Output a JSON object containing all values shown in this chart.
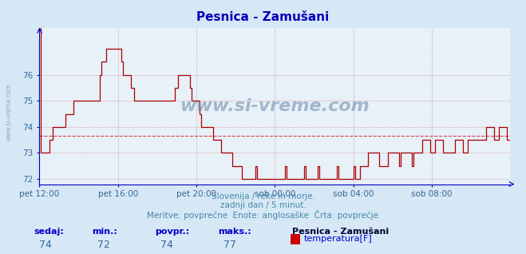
{
  "title": "Pesnica - Zamušani",
  "bg_color": "#d6e8f5",
  "plot_bg_color": "#e8f0f8",
  "line_color": "#aa0000",
  "avg_line_color": "#cc4444",
  "avg_line_style": "--",
  "axis_color": "#0000bb",
  "grid_color_h": "#cc8888",
  "grid_color_v": "#cc8888",
  "text_color": "#4488aa",
  "tick_color": "#336699",
  "watermark": "www.si-vreme.com",
  "watermark_color": "#6688aa",
  "sub_text1": "Slovenija / reke in morje.",
  "sub_text2": "zadnji dan / 5 minut.",
  "sub_text3": "Meritve: povprečne  Enote: anglosaške  Črta: povprečje",
  "legend_station": "Pesnica - Zamušani",
  "legend_label": "temperatura[F]",
  "legend_color": "#cc0000",
  "stat_labels": [
    "sedaj:",
    "min.:",
    "povpr.:",
    "maks.:"
  ],
  "stat_values": [
    "74",
    "72",
    "74",
    "77"
  ],
  "stat_label_color": "#0000cc",
  "stat_value_color": "#336699",
  "ylim": [
    71.8,
    77.8
  ],
  "yticks": [
    72,
    73,
    74,
    75,
    76
  ],
  "avg_value": 73.65,
  "xtick_labels": [
    "pet 12:00",
    "pet 16:00",
    "pet 20:00",
    "sob 00:00",
    "sob 04:00",
    "sob 08:00"
  ],
  "xtick_positions": [
    0,
    48,
    96,
    144,
    192,
    240
  ],
  "total_points": 289,
  "title_fontsize": 11,
  "tick_fontsize": 7.5,
  "sub_fontsize": 7.5,
  "stat_fontsize": 8,
  "keypoints": [
    [
      0,
      78
    ],
    [
      1,
      73
    ],
    [
      4,
      73
    ],
    [
      6,
      73.5
    ],
    [
      10,
      74
    ],
    [
      14,
      74
    ],
    [
      16,
      74.5
    ],
    [
      20,
      74.5
    ],
    [
      22,
      75
    ],
    [
      28,
      75
    ],
    [
      30,
      75
    ],
    [
      34,
      75
    ],
    [
      36,
      75
    ],
    [
      38,
      76.5
    ],
    [
      40,
      76.5
    ],
    [
      41,
      77
    ],
    [
      44,
      77
    ],
    [
      46,
      77
    ],
    [
      48,
      77
    ],
    [
      50,
      76.5
    ],
    [
      52,
      76
    ],
    [
      55,
      76
    ],
    [
      58,
      75
    ],
    [
      60,
      75
    ],
    [
      62,
      75
    ],
    [
      64,
      75
    ],
    [
      68,
      75
    ],
    [
      70,
      75
    ],
    [
      72,
      75
    ],
    [
      74,
      75
    ],
    [
      76,
      75
    ],
    [
      80,
      75
    ],
    [
      84,
      75.5
    ],
    [
      86,
      76
    ],
    [
      88,
      76
    ],
    [
      90,
      76
    ],
    [
      92,
      75.5
    ],
    [
      94,
      75
    ],
    [
      96,
      75
    ],
    [
      98,
      74.5
    ],
    [
      100,
      74
    ],
    [
      104,
      74
    ],
    [
      106,
      73.5
    ],
    [
      110,
      73.5
    ],
    [
      112,
      73
    ],
    [
      116,
      73
    ],
    [
      118,
      72.5
    ],
    [
      122,
      72.5
    ],
    [
      126,
      72
    ],
    [
      130,
      72
    ],
    [
      132,
      72.5
    ],
    [
      134,
      72
    ],
    [
      144,
      72
    ],
    [
      148,
      72
    ],
    [
      150,
      72.5
    ],
    [
      152,
      72
    ],
    [
      160,
      72
    ],
    [
      162,
      72.5
    ],
    [
      164,
      72
    ],
    [
      168,
      72
    ],
    [
      170,
      72.5
    ],
    [
      172,
      72
    ],
    [
      180,
      72
    ],
    [
      182,
      72.5
    ],
    [
      184,
      72
    ],
    [
      190,
      72
    ],
    [
      192,
      72.5
    ],
    [
      194,
      72
    ],
    [
      196,
      72.5
    ],
    [
      200,
      72.5
    ],
    [
      202,
      73
    ],
    [
      206,
      73
    ],
    [
      208,
      72.5
    ],
    [
      212,
      72.5
    ],
    [
      214,
      73
    ],
    [
      218,
      73
    ],
    [
      220,
      72.5
    ],
    [
      222,
      73
    ],
    [
      226,
      73
    ],
    [
      228,
      72.5
    ],
    [
      230,
      73
    ],
    [
      232,
      73
    ],
    [
      234,
      73.5
    ],
    [
      238,
      73.5
    ],
    [
      240,
      73
    ],
    [
      242,
      73.5
    ],
    [
      246,
      73.5
    ],
    [
      248,
      73
    ],
    [
      252,
      73
    ],
    [
      254,
      73.5
    ],
    [
      258,
      73.5
    ],
    [
      260,
      73
    ],
    [
      262,
      73.5
    ],
    [
      264,
      73.5
    ],
    [
      268,
      73.5
    ],
    [
      272,
      73.5
    ],
    [
      274,
      74
    ],
    [
      276,
      74
    ],
    [
      278,
      73.5
    ],
    [
      280,
      73.5
    ],
    [
      282,
      74
    ],
    [
      284,
      74
    ],
    [
      286,
      73.5
    ],
    [
      288,
      73.5
    ]
  ]
}
